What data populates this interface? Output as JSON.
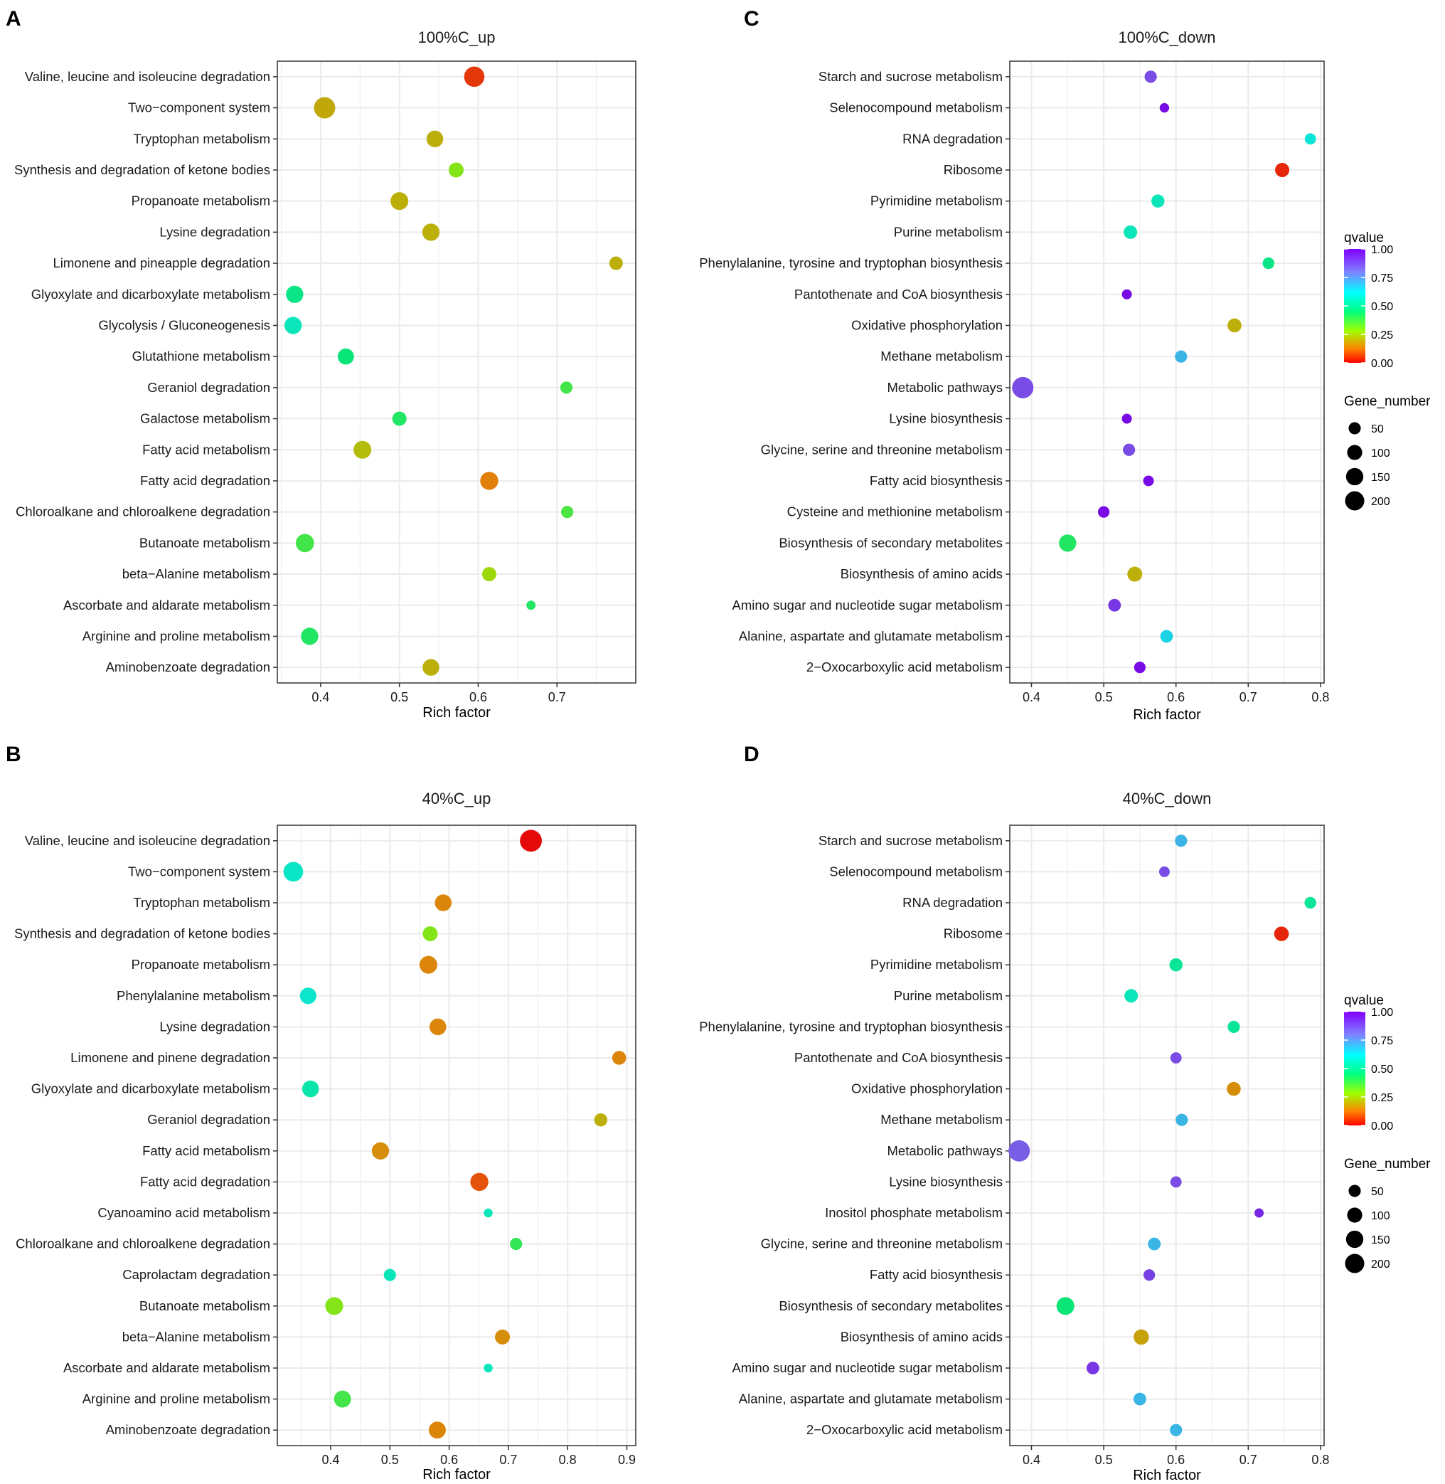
{
  "chart_data": [
    {
      "panel": "A",
      "type": "scatter",
      "title": "100%C_up",
      "xlabel": "Rich factor",
      "xlim": [
        0.345,
        0.8
      ],
      "xticks": [
        "0.4",
        "0.5",
        "0.6",
        "0.7"
      ],
      "xtick_values": [
        0.4,
        0.5,
        0.6,
        0.7
      ],
      "points": [
        {
          "term": "Valine, leucine and isoleucine degradation",
          "x": 0.595,
          "qvalue": 0.05,
          "gene_number": 175
        },
        {
          "term": "Two−component system",
          "x": 0.405,
          "qvalue": 0.19,
          "gene_number": 200
        },
        {
          "term": "Tryptophan metabolism",
          "x": 0.545,
          "qvalue": 0.2,
          "gene_number": 100
        },
        {
          "term": "Synthesis and degradation of ketone bodies",
          "x": 0.572,
          "qvalue": 0.3,
          "gene_number": 70
        },
        {
          "term": "Propanoate metabolism",
          "x": 0.5,
          "qvalue": 0.2,
          "gene_number": 120
        },
        {
          "term": "Lysine degradation",
          "x": 0.54,
          "qvalue": 0.2,
          "gene_number": 110
        },
        {
          "term": "Limonene and pineapple degradation",
          "x": 0.775,
          "qvalue": 0.2,
          "gene_number": 50
        },
        {
          "term": "Glyoxylate and dicarboxylate metabolism",
          "x": 0.367,
          "qvalue": 0.47,
          "gene_number": 110
        },
        {
          "term": "Glycolysis / Gluconeogenesis",
          "x": 0.365,
          "qvalue": 0.55,
          "gene_number": 110
        },
        {
          "term": "Glutathione metabolism",
          "x": 0.432,
          "qvalue": 0.45,
          "gene_number": 90
        },
        {
          "term": "Geraniol degradation",
          "x": 0.712,
          "qvalue": 0.38,
          "gene_number": 35
        },
        {
          "term": "Galactose metabolism",
          "x": 0.5,
          "qvalue": 0.42,
          "gene_number": 60
        },
        {
          "term": "Fatty acid metabolism",
          "x": 0.453,
          "qvalue": 0.22,
          "gene_number": 120
        },
        {
          "term": "Fatty acid degradation",
          "x": 0.614,
          "qvalue": 0.13,
          "gene_number": 125
        },
        {
          "term": "Chloroalkane and chloroalkene degradation",
          "x": 0.713,
          "qvalue": 0.37,
          "gene_number": 35
        },
        {
          "term": "Butanoate metabolism",
          "x": 0.38,
          "qvalue": 0.38,
          "gene_number": 130
        },
        {
          "term": "beta−Alanine metabolism",
          "x": 0.614,
          "qvalue": 0.26,
          "gene_number": 60
        },
        {
          "term": "Ascorbate and aldarate metabolism",
          "x": 0.667,
          "qvalue": 0.42,
          "gene_number": 10
        },
        {
          "term": "Arginine and proline metabolism",
          "x": 0.386,
          "qvalue": 0.42,
          "gene_number": 110
        },
        {
          "term": "Aminobenzoate degradation",
          "x": 0.54,
          "qvalue": 0.2,
          "gene_number": 100
        }
      ]
    },
    {
      "panel": "C",
      "type": "scatter",
      "title": "100%C_down",
      "xlabel": "Rich factor",
      "xlim": [
        0.37,
        0.805
      ],
      "xticks": [
        "0.4",
        "0.5",
        "0.6",
        "0.7",
        "0.8"
      ],
      "xtick_values": [
        0.4,
        0.5,
        0.6,
        0.7,
        0.8
      ],
      "points": [
        {
          "term": "Starch and sucrose metabolism",
          "x": 0.565,
          "qvalue": 0.88,
          "gene_number": 35
        },
        {
          "term": "Selenocompound metabolism",
          "x": 0.584,
          "qvalue": 1.0,
          "gene_number": 12
        },
        {
          "term": "RNA degradation",
          "x": 0.786,
          "qvalue": 0.6,
          "gene_number": 25
        },
        {
          "term": "Ribosome",
          "x": 0.747,
          "qvalue": 0.03,
          "gene_number": 60
        },
        {
          "term": "Pyrimidine metabolism",
          "x": 0.575,
          "qvalue": 0.55,
          "gene_number": 45
        },
        {
          "term": "Purine metabolism",
          "x": 0.537,
          "qvalue": 0.55,
          "gene_number": 50
        },
        {
          "term": "Phenylalanine, tyrosine and tryptophan biosynthesis",
          "x": 0.728,
          "qvalue": 0.47,
          "gene_number": 30
        },
        {
          "term": "Pantothenate and CoA biosynthesis",
          "x": 0.532,
          "qvalue": 1.0,
          "gene_number": 15
        },
        {
          "term": "Oxidative phosphorylation",
          "x": 0.681,
          "qvalue": 0.2,
          "gene_number": 55
        },
        {
          "term": "Methane metabolism",
          "x": 0.607,
          "qvalue": 0.7,
          "gene_number": 35
        },
        {
          "term": "Metabolic pathways",
          "x": 0.388,
          "qvalue": 0.88,
          "gene_number": 200
        },
        {
          "term": "Lysine biosynthesis",
          "x": 0.532,
          "qvalue": 1.0,
          "gene_number": 15
        },
        {
          "term": "Glycine, serine and threonine metabolism",
          "x": 0.535,
          "qvalue": 0.88,
          "gene_number": 35
        },
        {
          "term": "Fatty acid biosynthesis",
          "x": 0.562,
          "qvalue": 1.0,
          "gene_number": 20
        },
        {
          "term": "Cysteine and methionine metabolism",
          "x": 0.5,
          "qvalue": 1.0,
          "gene_number": 28
        },
        {
          "term": "Biosynthesis of secondary metabolites",
          "x": 0.45,
          "qvalue": 0.42,
          "gene_number": 110
        },
        {
          "term": "Biosynthesis of amino acids",
          "x": 0.543,
          "qvalue": 0.2,
          "gene_number": 70
        },
        {
          "term": "Amino sugar and nucleotide sugar metabolism",
          "x": 0.515,
          "qvalue": 0.92,
          "gene_number": 40
        },
        {
          "term": "Alanine, aspartate and glutamate metabolism",
          "x": 0.587,
          "qvalue": 0.65,
          "gene_number": 40
        },
        {
          "term": "2−Oxocarboxylic acid metabolism",
          "x": 0.55,
          "qvalue": 1.0,
          "gene_number": 28
        }
      ]
    },
    {
      "panel": "B",
      "type": "scatter",
      "title": "40%C_up",
      "xlabel": "Rich factor",
      "xlim": [
        0.31,
        0.915
      ],
      "xticks": [
        "0.4",
        "0.5",
        "0.6",
        "0.7",
        "0.8",
        "0.9"
      ],
      "xtick_values": [
        0.4,
        0.5,
        0.6,
        0.7,
        0.8,
        0.9
      ],
      "points": [
        {
          "term": "Valine, leucine and isoleucine degradation",
          "x": 0.738,
          "qvalue": 0.0,
          "gene_number": 215
        },
        {
          "term": "Two−component system",
          "x": 0.337,
          "qvalue": 0.57,
          "gene_number": 160
        },
        {
          "term": "Tryptophan metabolism",
          "x": 0.59,
          "qvalue": 0.14,
          "gene_number": 100
        },
        {
          "term": "Synthesis and degradation of ketone bodies",
          "x": 0.568,
          "qvalue": 0.3,
          "gene_number": 70
        },
        {
          "term": "Propanoate metabolism",
          "x": 0.565,
          "qvalue": 0.14,
          "gene_number": 120
        },
        {
          "term": "Phenylalanine metabolism",
          "x": 0.362,
          "qvalue": 0.58,
          "gene_number": 95
        },
        {
          "term": "Lysine degradation",
          "x": 0.581,
          "qvalue": 0.14,
          "gene_number": 100
        },
        {
          "term": "Limonene and pinene degradation",
          "x": 0.887,
          "qvalue": 0.14,
          "gene_number": 55
        },
        {
          "term": "Glyoxylate and dicarboxylate metabolism",
          "x": 0.366,
          "qvalue": 0.53,
          "gene_number": 100
        },
        {
          "term": "Geraniol degradation",
          "x": 0.856,
          "qvalue": 0.2,
          "gene_number": 45
        },
        {
          "term": "Fatty acid metabolism",
          "x": 0.484,
          "qvalue": 0.15,
          "gene_number": 110
        },
        {
          "term": "Fatty acid degradation",
          "x": 0.651,
          "qvalue": 0.08,
          "gene_number": 125
        },
        {
          "term": "Cyanoamino acid metabolism",
          "x": 0.666,
          "qvalue": 0.55,
          "gene_number": 8
        },
        {
          "term": "Chloroalkane and chloroalkene degradation",
          "x": 0.713,
          "qvalue": 0.4,
          "gene_number": 35
        },
        {
          "term": "Caprolactam degradation",
          "x": 0.5,
          "qvalue": 0.55,
          "gene_number": 35
        },
        {
          "term": "Butanoate metabolism",
          "x": 0.406,
          "qvalue": 0.3,
          "gene_number": 120
        },
        {
          "term": "beta−Alanine metabolism",
          "x": 0.69,
          "qvalue": 0.15,
          "gene_number": 70
        },
        {
          "term": "Ascorbate and aldarate metabolism",
          "x": 0.666,
          "qvalue": 0.55,
          "gene_number": 8
        },
        {
          "term": "Arginine and proline metabolism",
          "x": 0.42,
          "qvalue": 0.38,
          "gene_number": 105
        },
        {
          "term": "Aminobenzoate degradation",
          "x": 0.58,
          "qvalue": 0.14,
          "gene_number": 105
        }
      ]
    },
    {
      "panel": "D",
      "type": "scatter",
      "title": "40%C_down",
      "xlabel": "Rich factor",
      "xlim": [
        0.37,
        0.805
      ],
      "xticks": [
        "0.4",
        "0.5",
        "0.6",
        "0.7",
        "0.8"
      ],
      "xtick_values": [
        0.4,
        0.5,
        0.6,
        0.7,
        0.8
      ],
      "points": [
        {
          "term": "Starch and sucrose metabolism",
          "x": 0.607,
          "qvalue": 0.7,
          "gene_number": 35
        },
        {
          "term": "Selenocompound metabolism",
          "x": 0.584,
          "qvalue": 0.88,
          "gene_number": 20
        },
        {
          "term": "RNA degradation",
          "x": 0.786,
          "qvalue": 0.5,
          "gene_number": 30
        },
        {
          "term": "Ribosome",
          "x": 0.746,
          "qvalue": 0.03,
          "gene_number": 65
        },
        {
          "term": "Pyrimidine metabolism",
          "x": 0.6,
          "qvalue": 0.5,
          "gene_number": 45
        },
        {
          "term": "Purine metabolism",
          "x": 0.538,
          "qvalue": 0.55,
          "gene_number": 50
        },
        {
          "term": "Phenylalanine, tyrosine and tryptophan biosynthesis",
          "x": 0.68,
          "qvalue": 0.5,
          "gene_number": 35
        },
        {
          "term": "Pantothenate and CoA biosynthesis",
          "x": 0.6,
          "qvalue": 0.88,
          "gene_number": 25
        },
        {
          "term": "Oxidative phosphorylation",
          "x": 0.68,
          "qvalue": 0.15,
          "gene_number": 55
        },
        {
          "term": "Methane metabolism",
          "x": 0.608,
          "qvalue": 0.7,
          "gene_number": 35
        },
        {
          "term": "Metabolic pathways",
          "x": 0.383,
          "qvalue": 0.85,
          "gene_number": 200
        },
        {
          "term": "Lysine biosynthesis",
          "x": 0.6,
          "qvalue": 0.88,
          "gene_number": 25
        },
        {
          "term": "Inositol phosphate metabolism",
          "x": 0.715,
          "qvalue": 0.95,
          "gene_number": 10
        },
        {
          "term": "Glycine, serine and threonine metabolism",
          "x": 0.57,
          "qvalue": 0.7,
          "gene_number": 40
        },
        {
          "term": "Fatty acid biosynthesis",
          "x": 0.563,
          "qvalue": 0.9,
          "gene_number": 28
        },
        {
          "term": "Biosynthesis of secondary metabolites",
          "x": 0.447,
          "qvalue": 0.45,
          "gene_number": 120
        },
        {
          "term": "Biosynthesis of amino acids",
          "x": 0.552,
          "qvalue": 0.18,
          "gene_number": 75
        },
        {
          "term": "Amino sugar and nucleotide sugar metabolism",
          "x": 0.485,
          "qvalue": 0.92,
          "gene_number": 40
        },
        {
          "term": "Alanine, aspartate and glutamate metabolism",
          "x": 0.55,
          "qvalue": 0.7,
          "gene_number": 40
        },
        {
          "term": "2−Oxocarboxylic acid metabolism",
          "x": 0.6,
          "qvalue": 0.7,
          "gene_number": 35
        }
      ]
    }
  ],
  "legend": {
    "qvalue_title": "qvalue",
    "qvalue_labels": [
      "1.00",
      "0.75",
      "0.50",
      "0.25",
      "0.00"
    ],
    "qvalue_values": [
      1.0,
      0.75,
      0.5,
      0.25,
      0.0
    ],
    "gene_number_title": "Gene_number",
    "gene_number_labels": [
      "50",
      "100",
      "150",
      "200"
    ],
    "gene_number_values": [
      50,
      100,
      150,
      200
    ],
    "gradient_colors": [
      "#ff0000",
      "#ff8000",
      "#80ff00",
      "#00ff80",
      "#00ffff",
      "#8080ff",
      "#8000ff"
    ]
  }
}
